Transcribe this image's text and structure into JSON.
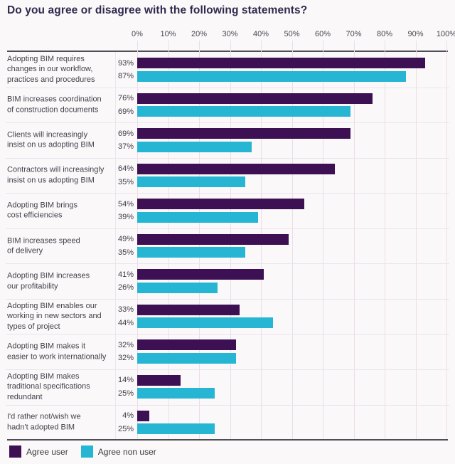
{
  "title": "Do you agree or disagree with the following statements?",
  "colors": {
    "agree_user": "#3d1054",
    "agree_non_user": "#26b6d4",
    "title_text": "#2f2a4d",
    "axis_text": "#4b4750",
    "grid_line": "#ecdcea"
  },
  "legend": {
    "items": [
      {
        "label": "Agree user",
        "color": "#3d1054"
      },
      {
        "label": "Agree non user",
        "color": "#26b6d4"
      }
    ]
  },
  "chart_data": {
    "type": "bar",
    "orientation": "horizontal",
    "title": "Do you agree or disagree with the following statements?",
    "xlabel": "",
    "ylabel": "",
    "xlim": [
      0,
      100
    ],
    "grid": true,
    "legend_position": "bottom-left",
    "x_axis_ticks": [
      "0%",
      "10%",
      "20%",
      "30%",
      "40%",
      "50%",
      "60%",
      "70%",
      "80%",
      "90%",
      "100%"
    ],
    "categories": [
      "Adopting BIM requires\nchanges in our workflow,\npractices and procedures",
      "BIM increases coordination\nof construction documents",
      "Clients will increasingly\ninsist on us adopting BIM",
      "Contractors will increasingly\ninsist on us adopting BIM",
      "Adopting BIM brings\ncost efficiencies",
      "BIM increases speed\nof delivery",
      "Adopting BIM increases\nour profitability",
      "Adopting BIM enables our\nworking in new sectors and\ntypes of project",
      "Adopting BIM makes it\neasier to work internationally",
      "Adopting BIM makes\ntraditional specifications\nredundant",
      "I'd rather not/wish we\nhadn't adopted BIM"
    ],
    "series": [
      {
        "name": "Agree user",
        "color": "#3d1054",
        "values": [
          93,
          76,
          69,
          64,
          54,
          49,
          41,
          33,
          32,
          14,
          4
        ],
        "labels": [
          "93%",
          "76%",
          "69%",
          "64%",
          "54%",
          "49%",
          "41%",
          "33%",
          "32%",
          "14%",
          "4%"
        ]
      },
      {
        "name": "Agree non user",
        "color": "#26b6d4",
        "values": [
          87,
          69,
          37,
          35,
          39,
          35,
          26,
          44,
          32,
          25,
          25
        ],
        "labels": [
          "87%",
          "69%",
          "37%",
          "35%",
          "39%",
          "35%",
          "26%",
          "44%",
          "32%",
          "25%",
          "25%"
        ]
      }
    ]
  }
}
